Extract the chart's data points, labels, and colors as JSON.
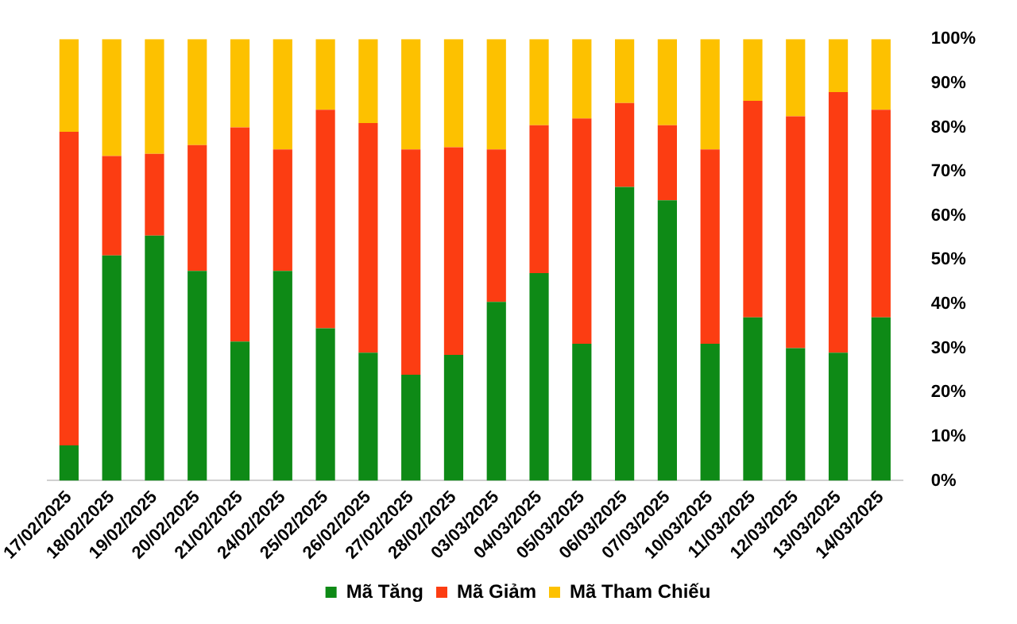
{
  "chart_data": {
    "type": "bar",
    "stacked": true,
    "categories": [
      "17/02/2025",
      "18/02/2025",
      "19/02/2025",
      "20/02/2025",
      "21/02/2025",
      "24/02/2025",
      "25/02/2025",
      "26/02/2025",
      "27/02/2025",
      "28/02/2025",
      "03/03/2025",
      "04/03/2025",
      "05/03/2025",
      "06/03/2025",
      "07/03/2025",
      "10/03/2025",
      "11/03/2025",
      "12/03/2025",
      "13/03/2025",
      "14/03/2025"
    ],
    "series": [
      {
        "name": "Mã Tăng",
        "color": "#0e8a16",
        "values": [
          8,
          51,
          55.5,
          47.5,
          31.5,
          47.5,
          34.5,
          29,
          24,
          28.5,
          40.5,
          47,
          31,
          66.5,
          63.5,
          31,
          37,
          30,
          29,
          37
        ]
      },
      {
        "name": "Mã Giảm",
        "color": "#fc3d12",
        "values": [
          71,
          22.5,
          18.5,
          28.5,
          48.5,
          27.5,
          49.5,
          52,
          51,
          47,
          34.5,
          33.5,
          51,
          19,
          17,
          44,
          49,
          52.5,
          59,
          47
        ]
      },
      {
        "name": "Mã Tham Chiếu",
        "color": "#fdc100",
        "values": [
          21,
          26.5,
          26,
          24,
          20,
          25,
          16,
          19,
          25,
          24.5,
          25,
          19.5,
          18,
          14.5,
          19.5,
          25,
          14,
          17.5,
          12,
          16
        ]
      }
    ],
    "ylim": [
      0,
      100
    ],
    "yticks": [
      {
        "value": 0,
        "label": "0%"
      },
      {
        "value": 10,
        "label": "10%"
      },
      {
        "value": 20,
        "label": "20%"
      },
      {
        "value": 30,
        "label": "30%"
      },
      {
        "value": 40,
        "label": "40%"
      },
      {
        "value": 50,
        "label": "50%"
      },
      {
        "value": 60,
        "label": "60%"
      },
      {
        "value": 70,
        "label": "70%"
      },
      {
        "value": 80,
        "label": "80%"
      },
      {
        "value": 90,
        "label": "90%"
      },
      {
        "value": 100,
        "label": "100%"
      }
    ],
    "grid": false,
    "legend": "bottom"
  }
}
